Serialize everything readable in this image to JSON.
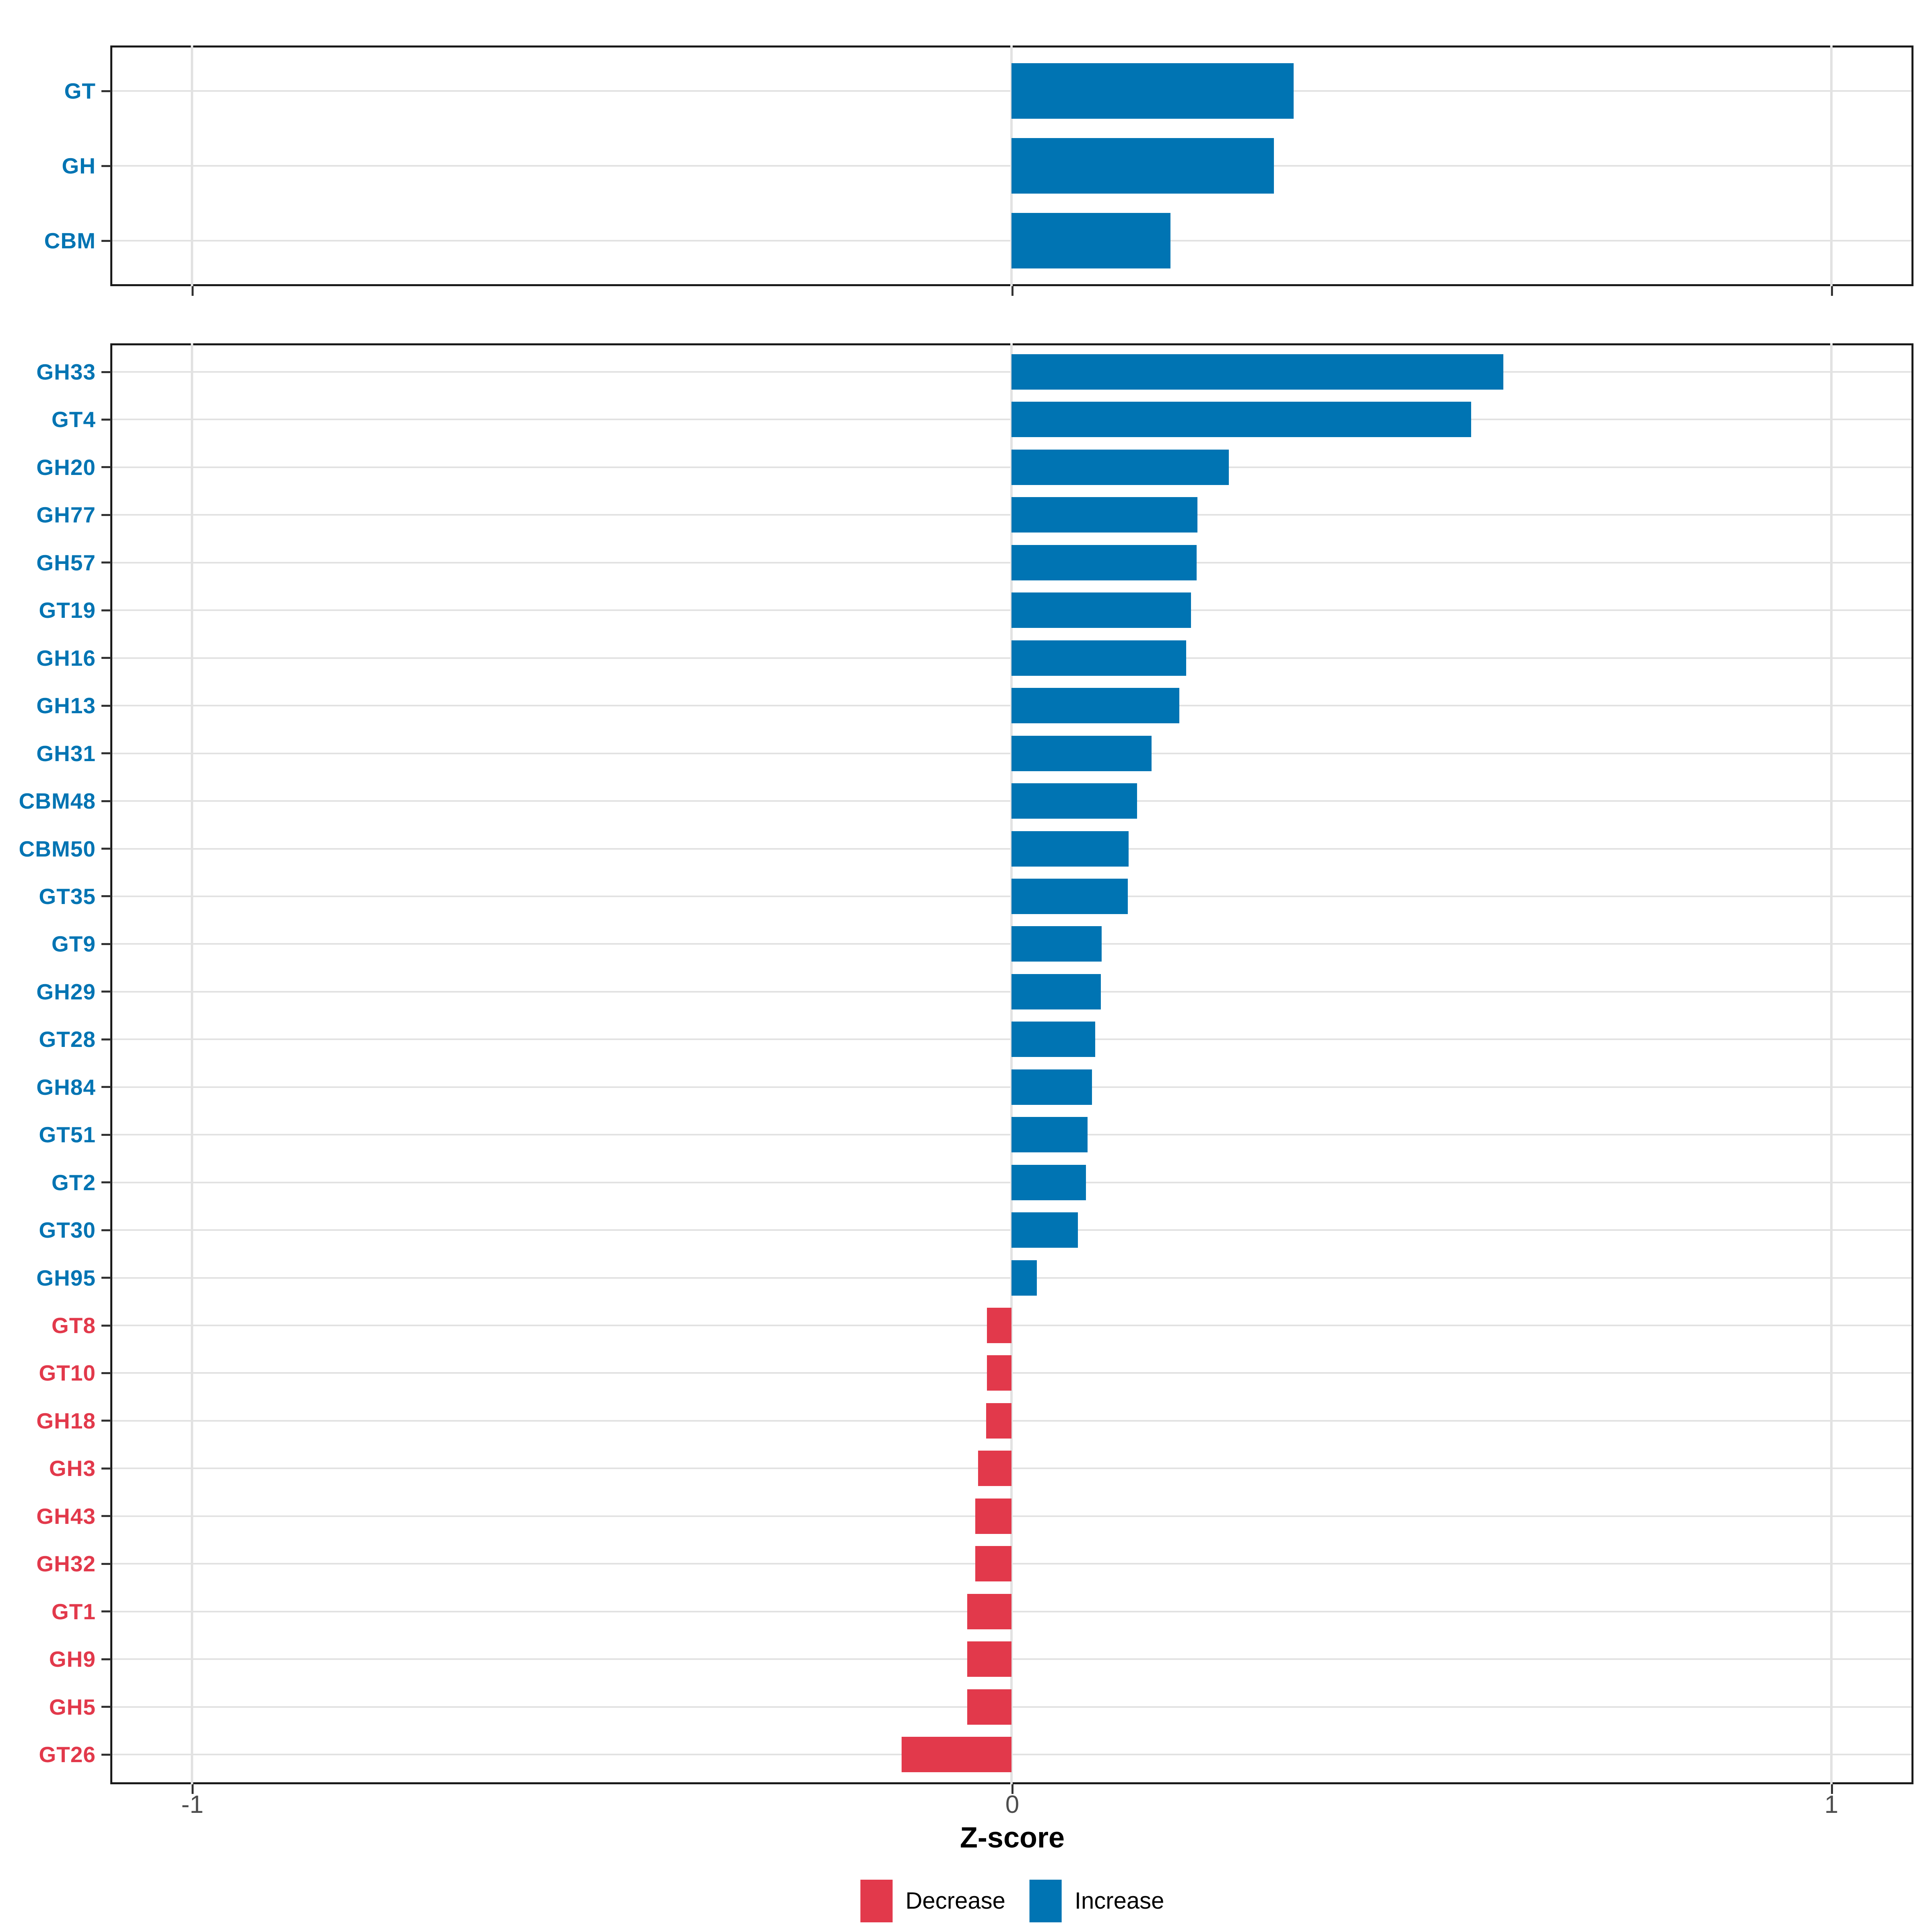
{
  "figure": {
    "background": "#FFFFFF"
  },
  "colors": {
    "increase": "#0074B3",
    "decrease": "#E2394B",
    "gridline": "#E2E2E2",
    "panel_border": "#1A1A1A",
    "tick_mark": "#333333",
    "axis_text": "#4D4D4D",
    "axis_title_color": "#000000"
  },
  "x_axis": {
    "title": "Z-score",
    "tick_labels": [
      "-1",
      "0",
      "1"
    ],
    "tick_values": [
      -1,
      0,
      1
    ],
    "range": [
      -1.1,
      1.1
    ]
  },
  "legend": {
    "position": "bottom",
    "items": [
      {
        "label": "Decrease",
        "color": "#E2394B"
      },
      {
        "label": "Increase",
        "color": "#0074B3"
      }
    ]
  },
  "chart_data": [
    {
      "type": "bar",
      "orientation": "horizontal",
      "panel": "cazyme-classes",
      "xlabel": "Z-score",
      "xlim": [
        -1.1,
        1.1
      ],
      "grid": true,
      "categories": [
        "GT",
        "GH",
        "CBM"
      ],
      "values": [
        0.344,
        0.32,
        0.194
      ],
      "directions": [
        "Increase",
        "Increase",
        "Increase"
      ]
    },
    {
      "type": "bar",
      "orientation": "horizontal",
      "panel": "cazyme-families",
      "xlabel": "Z-score",
      "xlim": [
        -1.1,
        1.1
      ],
      "grid": true,
      "categories": [
        "GH33",
        "GT4",
        "GH20",
        "GH77",
        "GH57",
        "GT19",
        "GH16",
        "GH13",
        "GH31",
        "CBM48",
        "CBM50",
        "GT35",
        "GT9",
        "GH29",
        "GT28",
        "GH84",
        "GT51",
        "GT2",
        "GT30",
        "GH95",
        "GT8",
        "GT10",
        "GH18",
        "GH3",
        "GH43",
        "GH32",
        "GT1",
        "GH9",
        "GH5",
        "GT26"
      ],
      "values": [
        0.6,
        0.561,
        0.265,
        0.227,
        0.226,
        0.219,
        0.213,
        0.205,
        0.171,
        0.153,
        0.143,
        0.142,
        0.11,
        0.109,
        0.102,
        0.098,
        0.093,
        0.091,
        0.081,
        0.031,
        -0.03,
        -0.03,
        -0.031,
        -0.041,
        -0.044,
        -0.044,
        -0.054,
        -0.054,
        -0.054,
        -0.134
      ],
      "directions": [
        "Increase",
        "Increase",
        "Increase",
        "Increase",
        "Increase",
        "Increase",
        "Increase",
        "Increase",
        "Increase",
        "Increase",
        "Increase",
        "Increase",
        "Increase",
        "Increase",
        "Increase",
        "Increase",
        "Increase",
        "Increase",
        "Increase",
        "Increase",
        "Decrease",
        "Decrease",
        "Decrease",
        "Decrease",
        "Decrease",
        "Decrease",
        "Decrease",
        "Decrease",
        "Decrease",
        "Decrease"
      ]
    }
  ]
}
